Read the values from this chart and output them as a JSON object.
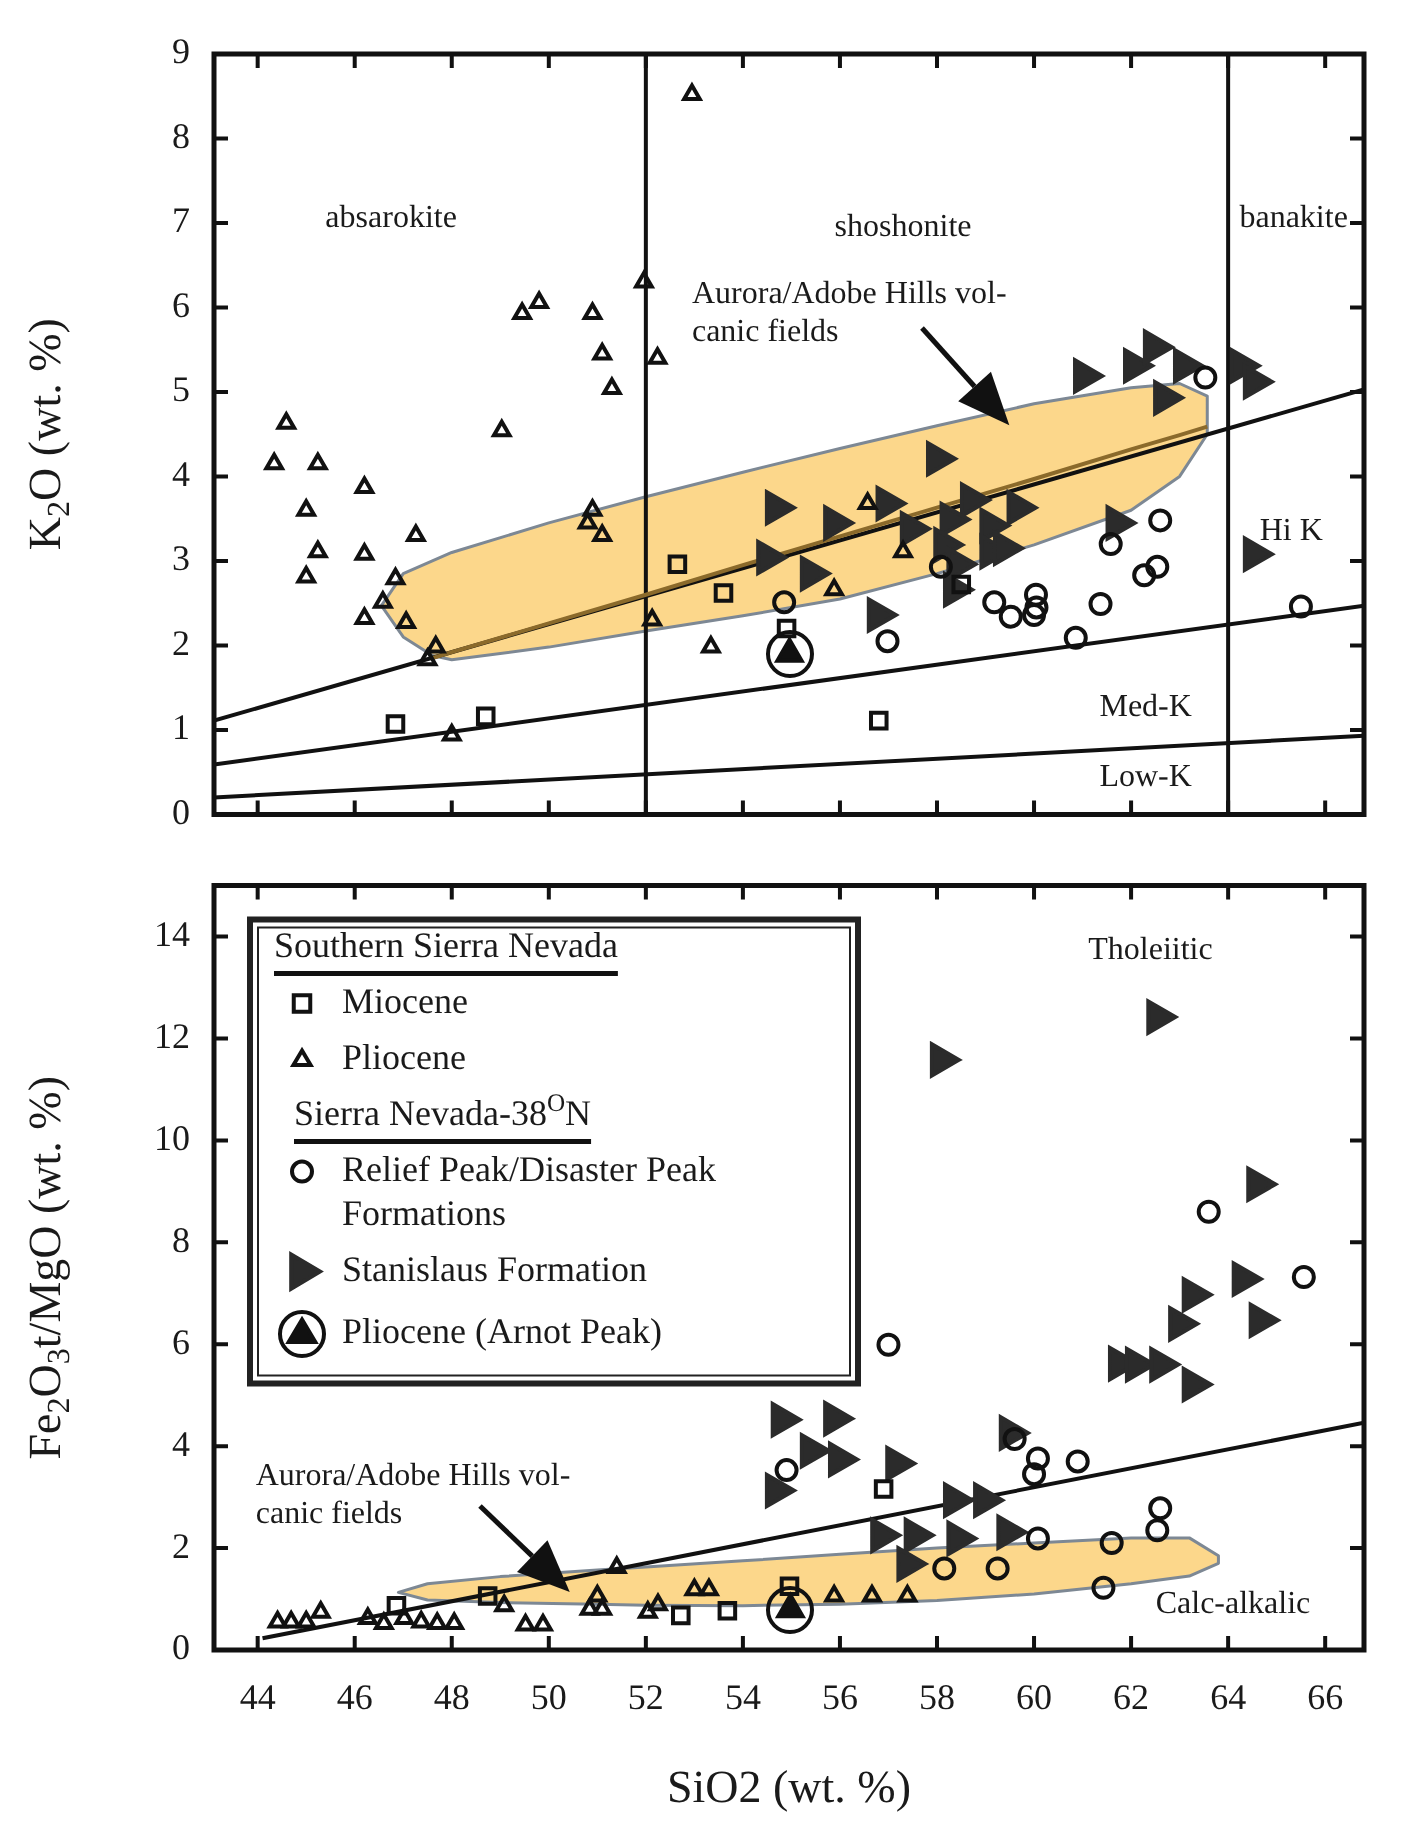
{
  "chart_data": [
    {
      "type": "scatter",
      "ylabel": "K$_{2}$O (wt. %)",
      "xlim": [
        43.1,
        66.8
      ],
      "ylim": [
        0,
        9
      ],
      "xticks": [
        44,
        46,
        48,
        50,
        52,
        54,
        56,
        58,
        60,
        62,
        64,
        66
      ],
      "yticks": [
        0,
        1,
        2,
        3,
        4,
        5,
        6,
        7,
        8,
        9
      ],
      "tick_labels": "y",
      "ref_lines": [
        {
          "axis": "x",
          "value": 52
        },
        {
          "axis": "x",
          "value": 64
        }
      ],
      "annotations": [
        "absarokite",
        "shoshonite",
        "banakite",
        "Hi K",
        "Med-K",
        "Low-K",
        "Aurora/Adobe Hills vol-\ncanic fields"
      ],
      "series": [
        {
          "type": "line",
          "color": "#8b6a2b",
          "x": [
            46.55,
            47,
            47.6,
            48,
            50,
            52,
            54,
            56,
            58,
            60,
            62,
            63,
            63.57
          ],
          "values": [
            null,
            null,
            1.85,
            1.92,
            2.26,
            2.6,
            2.95,
            3.29,
            3.63,
            3.97,
            4.32,
            4.49,
            4.59
          ],
          "lower": [
            2.47,
            2.1,
            1.88,
            1.83,
            1.98,
            2.17,
            2.35,
            2.55,
            2.85,
            3.19,
            3.6,
            4.0,
            4.5
          ],
          "upper": [
            2.47,
            2.85,
            3.0,
            3.1,
            3.45,
            3.76,
            4.05,
            4.33,
            4.6,
            4.86,
            5.05,
            5.1,
            4.95
          ]
        },
        {
          "type": "line",
          "color": "#111111",
          "x": [
            43.1,
            66.8
          ],
          "values": [
            1.11,
            5.03
          ]
        },
        {
          "type": "line",
          "color": "#111111",
          "x": [
            43.1,
            66.8
          ],
          "values": [
            0.59,
            2.47
          ]
        },
        {
          "type": "line",
          "color": "#111111",
          "x": [
            43.1,
            66.8
          ],
          "values": [
            0.2,
            0.93
          ]
        },
        {
          "marker": "square",
          "color": "#111111",
          "x": [
            46.84,
            48.7,
            52.65,
            53.6,
            54.9,
            56.8,
            58.5
          ],
          "values": [
            1.07,
            1.16,
            2.96,
            2.62,
            2.2,
            1.11,
            2.72
          ]
        },
        {
          "marker": "triangle",
          "color": "#111111",
          "x": [
            44.59,
            44.34,
            45.24,
            45.0,
            45.24,
            45.0,
            46.2,
            46.2,
            46.2,
            47.26,
            46.84,
            46.58,
            47.06,
            47.67,
            47.5,
            48.0,
            49.03,
            49.45,
            49.8,
            50.9,
            51.1,
            51.3,
            50.9,
            50.8,
            51.1,
            51.96,
            52.24,
            52.95,
            52.13,
            53.34,
            56.57,
            57.3,
            55.88
          ],
          "values": [
            4.63,
            4.15,
            4.15,
            3.6,
            3.11,
            2.81,
            3.87,
            3.08,
            2.32,
            3.3,
            2.79,
            2.51,
            2.27,
            1.98,
            1.83,
            0.94,
            4.54,
            5.93,
            6.06,
            5.93,
            5.45,
            5.04,
            3.6,
            3.45,
            3.3,
            6.3,
            5.4,
            8.52,
            2.3,
            1.98,
            3.68,
            3.11,
            2.66
          ]
        },
        {
          "marker": "circle",
          "color": "#111111",
          "x": [
            54.85,
            56.98,
            58.08,
            59.18,
            59.52,
            60.04,
            60.05,
            60.0,
            60.86,
            61.37,
            61.58,
            62.6,
            62.54,
            62.27,
            63.53,
            65.5
          ],
          "values": [
            2.51,
            2.05,
            2.93,
            2.51,
            2.34,
            2.6,
            2.45,
            2.36,
            2.09,
            2.49,
            3.2,
            3.48,
            2.93,
            2.83,
            5.17,
            2.46
          ]
        },
        {
          "marker": "triangle-right",
          "color": "#2b2b2b",
          "x": [
            61.03,
            62.06,
            62.47,
            63.09,
            64.26,
            64.53,
            62.68,
            58.0,
            54.68,
            55.88,
            56.96,
            58.7,
            59.66,
            58.28,
            59.1,
            57.46,
            54.5,
            55.4,
            58.15,
            58.42,
            59.1,
            59.38,
            56.78,
            61.7,
            64.53,
            58.35
          ],
          "values": [
            5.19,
            5.31,
            5.53,
            5.31,
            5.31,
            5.12,
            4.93,
            4.21,
            3.63,
            3.45,
            3.68,
            3.72,
            3.63,
            3.49,
            3.42,
            3.38,
            3.04,
            2.85,
            3.19,
            2.96,
            3.11,
            3.15,
            2.36,
            3.45,
            3.08,
            2.66
          ]
        },
        {
          "marker": "triangle",
          "color": "#111111",
          "x": [
            54.96
          ],
          "values": [
            1.9
          ]
        }
      ]
    },
    {
      "type": "scatter",
      "xlabel": "SiO2 (wt. %)",
      "ylabel": "Fe$_{2}$O$_{3}$t/MgO (wt. %)",
      "xlim": [
        43.1,
        66.8
      ],
      "ylim": [
        0,
        15
      ],
      "xticks": [
        44,
        46,
        48,
        50,
        52,
        54,
        56,
        58,
        60,
        62,
        64,
        66
      ],
      "yticks": [
        0,
        2,
        4,
        6,
        8,
        10,
        12,
        14
      ],
      "legend": "top left",
      "legend_title": "Southern Sierra Nevada",
      "annotations": [
        "Tholeiitic",
        "Calc-alkalic",
        "Aurora/Adobe Hills vol-\ncanic fields",
        "Sierra Nevada-38$^{O}$N"
      ],
      "series": [
        {
          "type": "line",
          "x": [
            46.9,
            47.5,
            49,
            51,
            52,
            54,
            56,
            58,
            60,
            62,
            63.2,
            63.8
          ],
          "values": [
            null,
            null,
            null,
            null,
            null,
            null,
            null,
            null,
            null,
            null,
            null,
            null
          ],
          "lower": [
            1.13,
            0.98,
            0.93,
            0.9,
            0.88,
            0.87,
            0.9,
            0.97,
            1.1,
            1.3,
            1.45,
            1.7
          ],
          "upper": [
            1.13,
            1.3,
            1.44,
            1.57,
            1.63,
            1.75,
            1.88,
            2.0,
            2.1,
            2.2,
            2.2,
            1.85
          ]
        },
        {
          "type": "line",
          "color": "#111111",
          "x": [
            44.1,
            66.8
          ],
          "values": [
            0.23,
            4.46
          ]
        },
        {
          "name": "Miocene",
          "marker": "square",
          "color": "#111111",
          "x": [
            46.86,
            48.74,
            52.72,
            53.68,
            54.96,
            56.9
          ],
          "values": [
            0.87,
            1.06,
            0.68,
            0.77,
            1.25,
            3.16
          ]
        },
        {
          "name": "Pliocene",
          "marker": "triangle",
          "color": "#111111",
          "x": [
            44.41,
            44.69,
            45.0,
            45.3,
            46.27,
            46.6,
            47.02,
            47.37,
            47.7,
            48.05,
            49.08,
            49.52,
            49.88,
            50.84,
            51.1,
            51.0,
            51.4,
            52.04,
            52.25,
            53.0,
            53.3,
            55.88,
            56.66,
            57.39
          ],
          "values": [
            0.55,
            0.55,
            0.55,
            0.74,
            0.62,
            0.52,
            0.62,
            0.55,
            0.52,
            0.52,
            0.87,
            0.49,
            0.49,
            0.8,
            0.8,
            1.06,
            1.62,
            0.74,
            0.89,
            1.18,
            1.18,
            1.06,
            1.06,
            1.06
          ]
        },
        {
          "name": "Relief Peak/Disaster Peak Formations",
          "marker": "circle",
          "color": "#111111",
          "x": [
            54.9,
            57.0,
            59.6,
            60.08,
            60.0,
            60.9,
            60.08,
            58.15,
            59.25,
            61.6,
            62.6,
            62.54,
            61.43,
            63.6,
            65.56
          ],
          "values": [
            3.53,
            5.99,
            4.14,
            3.76,
            3.45,
            3.7,
            2.19,
            1.6,
            1.6,
            2.1,
            2.78,
            2.35,
            1.22,
            8.6,
            7.32
          ]
        },
        {
          "name": "Stanislaus Formation",
          "marker": "triangle-right",
          "color": "#2b2b2b",
          "x": [
            58.08,
            62.54,
            64.6,
            64.3,
            64.65,
            63.27,
            62.99,
            61.75,
            62.1,
            62.6,
            63.27,
            54.8,
            55.88,
            55.4,
            55.98,
            54.68,
            57.16,
            59.5,
            58.35,
            58.97,
            56.85,
            57.54,
            58.42,
            59.45,
            57.39
          ],
          "values": [
            11.58,
            12.42,
            9.14,
            7.28,
            6.47,
            6.97,
            6.4,
            5.62,
            5.6,
            5.6,
            5.21,
            4.52,
            4.54,
            3.91,
            3.74,
            3.13,
            3.66,
            4.26,
            2.94,
            2.94,
            2.25,
            2.25,
            2.19,
            2.31,
            1.69
          ]
        },
        {
          "name": "Pliocene (Arnot Peak)",
          "marker": "triangle",
          "color": "#111111",
          "x": [
            54.98
          ],
          "values": [
            0.8
          ]
        }
      ]
    }
  ]
}
